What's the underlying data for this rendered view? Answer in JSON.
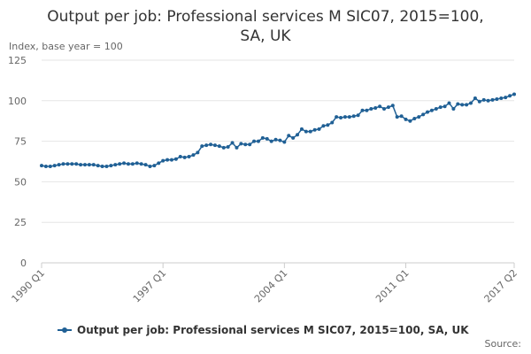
{
  "chart_data": {
    "type": "line",
    "title": "Output per job: Professional services M SIC07, 2015=100, SA, UK",
    "y_label": "Index, base year = 100",
    "source": "Source:",
    "categories": [
      "1990 Q1",
      null,
      null,
      null,
      null,
      null,
      null,
      null,
      null,
      null,
      null,
      null,
      null,
      null,
      null,
      null,
      null,
      null,
      null,
      null,
      null,
      null,
      null,
      null,
      null,
      null,
      null,
      null,
      "1997 Q1",
      null,
      null,
      null,
      null,
      null,
      null,
      null,
      null,
      null,
      null,
      null,
      null,
      null,
      null,
      null,
      null,
      null,
      null,
      null,
      null,
      null,
      null,
      null,
      null,
      null,
      null,
      null,
      "2004 Q1",
      null,
      null,
      null,
      null,
      null,
      null,
      null,
      null,
      null,
      null,
      null,
      null,
      null,
      null,
      null,
      null,
      null,
      null,
      null,
      null,
      null,
      null,
      null,
      null,
      null,
      null,
      null,
      "2011 Q1",
      null,
      null,
      null,
      null,
      null,
      null,
      null,
      null,
      null,
      null,
      null,
      null,
      null,
      null,
      null,
      null,
      null,
      null,
      null,
      null,
      null,
      null,
      null,
      null,
      "2017 Q2"
    ],
    "series": [
      {
        "name": "Output per job: Professional services M SIC07, 2015=100, SA, UK",
        "color": "#206095",
        "values": [
          60,
          59.5,
          59.5,
          60,
          60.5,
          61,
          61,
          61,
          61,
          60.5,
          60.5,
          60.5,
          60.5,
          60,
          59.5,
          59.5,
          60,
          60.5,
          61,
          61.5,
          61,
          61,
          61.5,
          61,
          60.5,
          59.5,
          60,
          61.5,
          63,
          63.5,
          63.5,
          64,
          65.5,
          65,
          65.5,
          66.5,
          68,
          72,
          72.5,
          73,
          72.5,
          72,
          71,
          71.5,
          74,
          71,
          73.5,
          73,
          73,
          75,
          75,
          77,
          76.5,
          75,
          76,
          75.5,
          74.5,
          78.5,
          77,
          79,
          82.5,
          81,
          81,
          82,
          82.5,
          84.5,
          85,
          86.5,
          90,
          89.5,
          90,
          90,
          90.5,
          91,
          94,
          94,
          95,
          95.5,
          96.5,
          95,
          96,
          97,
          90,
          90.5,
          88.5,
          87.5,
          89,
          90,
          91.5,
          93,
          94,
          95,
          96,
          96.5,
          98.5,
          95,
          98,
          97.5,
          97.5,
          98.5,
          101.5,
          99.5,
          100.5,
          100,
          100.5,
          101,
          101.5,
          102,
          103,
          104
        ]
      }
    ],
    "ylim": [
      0,
      125
    ],
    "yticks": [
      0,
      25,
      50,
      75,
      100,
      125
    ],
    "grid": true,
    "legend": "bottom"
  }
}
